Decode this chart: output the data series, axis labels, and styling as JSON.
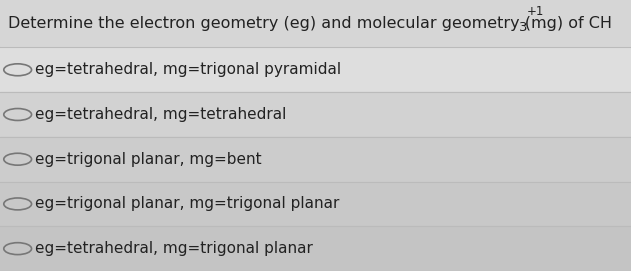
{
  "title": "Determine the electron geometry (eg) and molecular geometry (mg) of CH₃$^{+1}$.",
  "title_plain": "Determine the electron geometry (eg) and molecular geometry (mg) of CH",
  "title_super": "+1",
  "title_sub": "3",
  "options": [
    "eg=tetrahedral, mg=trigonal pyramidal",
    "eg=tetrahedral, mg=tetrahedral",
    "eg=trigonal planar, mg=bent",
    "eg=trigonal planar, mg=trigonal planar",
    "eg=tetrahedral, mg=trigonal planar"
  ],
  "bg_color": "#d8d8d8",
  "title_bg_color": "#e8e8e8",
  "option_bg_colors": [
    "#e0e0e0",
    "#d4d4d4",
    "#cacaca",
    "#c8c8c8",
    "#c4c4c4"
  ],
  "text_color": "#222222",
  "circle_color": "#888888",
  "divider_color": "#bbbbbb",
  "title_fontsize": 11.5,
  "option_fontsize": 11.0,
  "fig_width": 6.31,
  "fig_height": 2.71
}
